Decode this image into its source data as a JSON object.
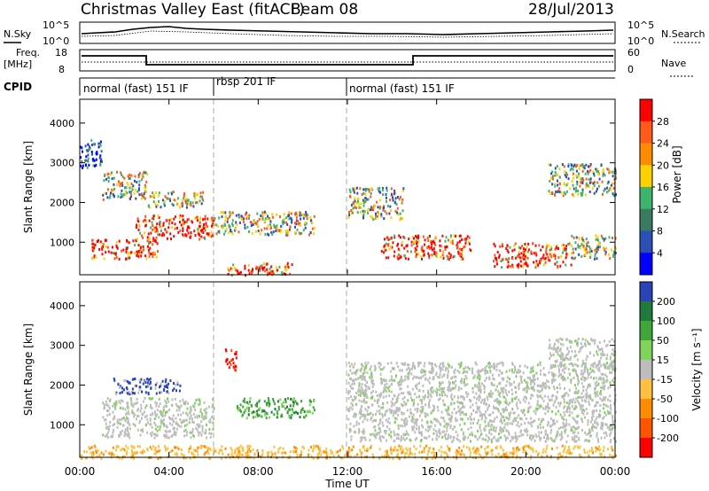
{
  "header": {
    "title": "Christmas Valley East (fitACF)",
    "beam": "Beam 08",
    "date": "28/Jul/2013"
  },
  "noise_panel": {
    "left_label": "N.Sky",
    "right_label": "N.Search",
    "left_ticks": [
      "10^5",
      "10^0"
    ],
    "right_ticks": [
      "10^5",
      "10^0"
    ]
  },
  "freq_panel": {
    "left_label_1": "Freq.",
    "left_label_2": "[MHz]",
    "right_label": "Nave",
    "left_ticks": [
      "18",
      "8"
    ],
    "right_ticks": [
      "60",
      "0"
    ]
  },
  "cpid": {
    "label": "CPID",
    "segments": [
      {
        "label": "normal (fast) 151 IF",
        "start_h": 0,
        "end_h": 6
      },
      {
        "label": "rbsp 201 IF",
        "start_h": 6,
        "end_h": 12
      },
      {
        "label": "normal (fast) 151 IF",
        "start_h": 12,
        "end_h": 24
      }
    ]
  },
  "time_axis": {
    "label": "Time UT",
    "ticks": [
      "00:00",
      "04:00",
      "08:00",
      "12:00",
      "16:00",
      "20:00",
      "00:00"
    ]
  },
  "chart_data": [
    {
      "type": "heatmap",
      "name": "power",
      "ylabel": "Slant Range [km]",
      "xlim_hours": [
        0,
        24
      ],
      "ylim": [
        180,
        4600
      ],
      "yticks": [
        1000,
        2000,
        3000,
        4000
      ],
      "colorbar": {
        "label": "Power [dB]",
        "tick_labels": [
          "4",
          "8",
          "12",
          "16",
          "20",
          "24",
          "28"
        ],
        "colors": [
          "#0000ff",
          "#2a4fb5",
          "#3a7a60",
          "#3cb46e",
          "#ffd000",
          "#ff8c00",
          "#ff5a1a",
          "#ff0000"
        ]
      },
      "echo_regions": [
        {
          "t": [
            0.0,
            1.0
          ],
          "r": [
            2900,
            3600
          ],
          "level": "low"
        },
        {
          "t": [
            1.0,
            3.0
          ],
          "r": [
            2100,
            2800
          ],
          "level": "mid"
        },
        {
          "t": [
            3.0,
            5.5
          ],
          "r": [
            1900,
            2300
          ],
          "level": "mid"
        },
        {
          "t": [
            0.5,
            3.5
          ],
          "r": [
            600,
            1100
          ],
          "level": "high"
        },
        {
          "t": [
            2.5,
            6.0
          ],
          "r": [
            1100,
            1700
          ],
          "level": "high"
        },
        {
          "t": [
            6.0,
            10.5
          ],
          "r": [
            1200,
            1800
          ],
          "level": "mid"
        },
        {
          "t": [
            6.5,
            9.5
          ],
          "r": [
            200,
            500
          ],
          "level": "high"
        },
        {
          "t": [
            12.0,
            14.5
          ],
          "r": [
            1600,
            2400
          ],
          "level": "mid"
        },
        {
          "t": [
            13.5,
            17.5
          ],
          "r": [
            600,
            1200
          ],
          "level": "high"
        },
        {
          "t": [
            18.5,
            22.0
          ],
          "r": [
            400,
            1000
          ],
          "level": "high"
        },
        {
          "t": [
            21.0,
            24.0
          ],
          "r": [
            2200,
            3000
          ],
          "level": "mid"
        },
        {
          "t": [
            22.0,
            24.0
          ],
          "r": [
            600,
            1200
          ],
          "level": "mid"
        }
      ]
    },
    {
      "type": "heatmap",
      "name": "velocity",
      "ylabel": "Slant Range [km]",
      "xlim_hours": [
        0,
        24
      ],
      "ylim": [
        180,
        4600
      ],
      "yticks": [
        1000,
        2000,
        3000,
        4000
      ],
      "colorbar": {
        "label": "Velocity [m s⁻¹]",
        "tick_labels": [
          "200",
          "100",
          "50",
          "15",
          "-15",
          "-50",
          "-100",
          "-200"
        ],
        "colors": [
          "#2a44b8",
          "#1f7a3c",
          "#3fa63a",
          "#7fd35a",
          "#bdbdbd",
          "#ffbf3f",
          "#ff8c00",
          "#ff5500",
          "#ff0000"
        ]
      },
      "echo_regions": [
        {
          "t": [
            1.5,
            4.5
          ],
          "r": [
            1800,
            2200
          ],
          "velocity": 200
        },
        {
          "t": [
            6.5,
            7.0
          ],
          "r": [
            2400,
            3000
          ],
          "velocity": -200
        },
        {
          "t": [
            7.0,
            10.5
          ],
          "r": [
            1200,
            1700
          ],
          "velocity": 50
        },
        {
          "t": [
            0.0,
            24.0
          ],
          "r": [
            180,
            500
          ],
          "velocity": -50
        },
        {
          "t": [
            1.0,
            6.0
          ],
          "r": [
            700,
            1700
          ],
          "velocity": 0
        },
        {
          "t": [
            12.0,
            24.0
          ],
          "r": [
            600,
            2600
          ],
          "velocity": 0
        },
        {
          "t": [
            21.0,
            24.0
          ],
          "r": [
            2400,
            3200
          ],
          "velocity": 0
        }
      ]
    }
  ]
}
